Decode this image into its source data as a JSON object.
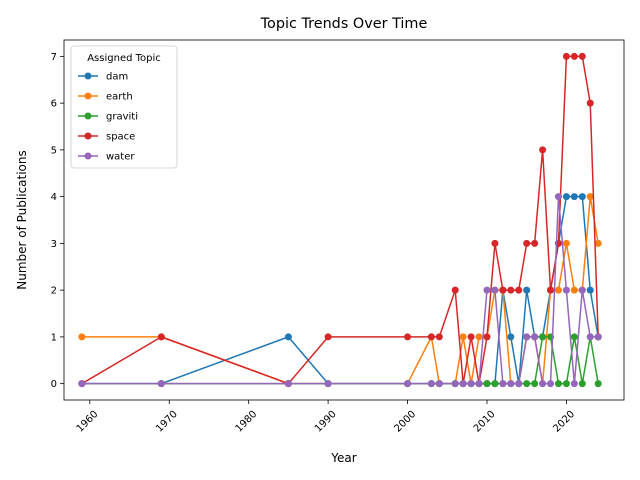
{
  "chart_data": {
    "type": "line",
    "title": "Topic Trends Over Time",
    "xlabel": "Year",
    "ylabel": "Number of Publications",
    "xlim": [
      1956.75,
      2027.25
    ],
    "ylim": [
      -0.35,
      7.35
    ],
    "x_ticks": [
      1960,
      1970,
      1980,
      1990,
      2000,
      2010,
      2020
    ],
    "y_ticks": [
      0,
      1,
      2,
      3,
      4,
      5,
      6,
      7
    ],
    "grid": false,
    "legend": {
      "title": "Assigned Topic",
      "placement": "top-left"
    },
    "x": [
      1959,
      1969,
      1985,
      1990,
      2000,
      2003,
      2004,
      2006,
      2007,
      2008,
      2009,
      2010,
      2011,
      2012,
      2013,
      2014,
      2015,
      2016,
      2017,
      2018,
      2019,
      2020,
      2021,
      2022,
      2023,
      2024
    ],
    "series": [
      {
        "name": "dam",
        "color": "#1f77b4",
        "values": [
          0,
          0,
          1,
          0,
          0,
          0,
          0,
          0,
          0,
          0,
          0,
          0,
          0,
          2,
          1,
          0,
          2,
          1,
          1,
          2,
          3,
          4,
          4,
          4,
          2,
          1
        ]
      },
      {
        "name": "earth",
        "color": "#ff7f0e",
        "values": [
          1,
          1,
          0,
          0,
          0,
          1,
          0,
          0,
          1,
          0,
          1,
          1,
          2,
          2,
          0,
          0,
          1,
          1,
          0,
          2,
          2,
          3,
          2,
          2,
          4,
          3
        ]
      },
      {
        "name": "graviti",
        "color": "#2ca02c",
        "values": [
          0,
          0,
          0,
          0,
          0,
          0,
          0,
          0,
          0,
          0,
          0,
          0,
          0,
          0,
          0,
          0,
          0,
          0,
          1,
          1,
          0,
          0,
          1,
          0,
          1,
          0
        ]
      },
      {
        "name": "space",
        "color": "#d62728",
        "values": [
          0,
          1,
          0,
          1,
          1,
          1,
          1,
          2,
          0,
          1,
          0,
          1,
          3,
          2,
          2,
          2,
          3,
          3,
          5,
          2,
          3,
          7,
          7,
          7,
          6,
          1
        ]
      },
      {
        "name": "water",
        "color": "#9467bd",
        "values": [
          0,
          0,
          0,
          0,
          0,
          0,
          0,
          0,
          0,
          0,
          0,
          2,
          2,
          0,
          0,
          0,
          1,
          1,
          0,
          0,
          4,
          2,
          0,
          2,
          1,
          1
        ]
      }
    ]
  }
}
